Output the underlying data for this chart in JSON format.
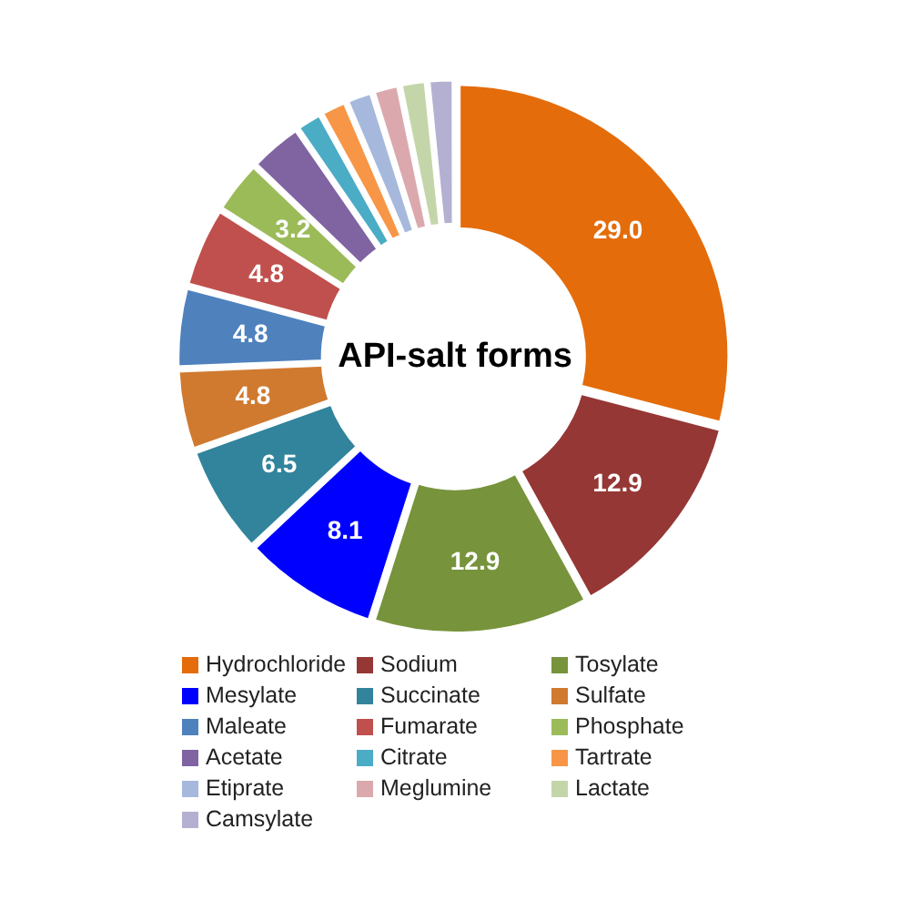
{
  "chart_data": {
    "type": "donut",
    "title": "API-salt forms",
    "categories": [
      "Hydrochloride",
      "Sodium",
      "Tosylate",
      "Mesylate",
      "Succinate",
      "Sulfate",
      "Maleate",
      "Fumarate",
      "Phosphate",
      "Acetate",
      "Citrate",
      "Tartrate",
      "Etiprate",
      "Meglumine",
      "Lactate",
      "Camsylate"
    ],
    "values": [
      29.0,
      12.9,
      12.9,
      8.1,
      6.5,
      4.8,
      4.8,
      4.8,
      3.2,
      3.2,
      1.6,
      1.6,
      1.6,
      1.6,
      1.6,
      1.6
    ],
    "value_labels": [
      "29.0",
      "12.9",
      "12.9",
      "8.1",
      "6.5",
      "4.8",
      "4.8",
      "4.8",
      "3.2",
      null,
      null,
      null,
      null,
      null,
      null,
      null
    ],
    "colors": [
      "#e46c0a",
      "#953735",
      "#77933c",
      "#0000ff",
      "#31849b",
      "#d07a30",
      "#4f81bd",
      "#c0504d",
      "#9bbb59",
      "#8064a2",
      "#4bacc6",
      "#f79646",
      "#a6b9dd",
      "#dba9ad",
      "#c4d6a9",
      "#b3b0d2"
    ],
    "legend": "bottom"
  }
}
